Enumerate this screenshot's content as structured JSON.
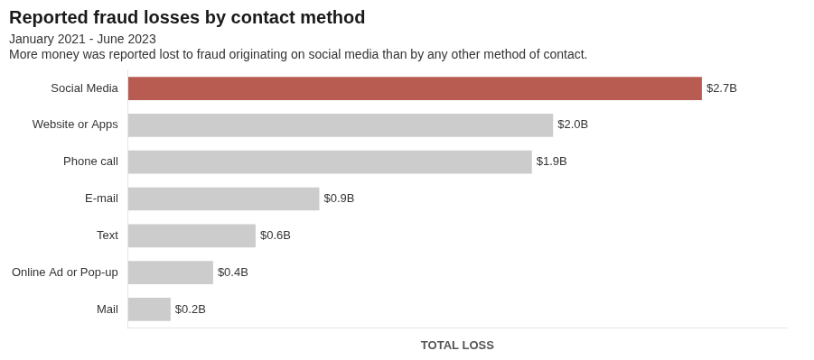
{
  "chart_data": {
    "type": "bar",
    "orientation": "horizontal",
    "title": "Reported fraud losses by contact method",
    "subtitle": "January 2021 - June 2023",
    "description": "More money was reported lost to fraud originating on social media than by any other method of contact.",
    "xlabel": "TOTAL LOSS",
    "categories": [
      "Social Media",
      "Website or Apps",
      "Phone call",
      "E-mail",
      "Text",
      "Online Ad or Pop-up",
      "Mail"
    ],
    "values": [
      2.7,
      2.0,
      1.9,
      0.9,
      0.6,
      0.4,
      0.2
    ],
    "value_labels": [
      "$2.7B",
      "$2.0B",
      "$1.9B",
      "$0.9B",
      "$0.6B",
      "$0.4B",
      "$0.2B"
    ],
    "colors": [
      "#b85c52",
      "#cccccc",
      "#cccccc",
      "#cccccc",
      "#cccccc",
      "#cccccc",
      "#cccccc"
    ],
    "xlim": [
      0,
      3.1
    ],
    "data_labels": true,
    "tick_labels": "y",
    "grid": false
  }
}
